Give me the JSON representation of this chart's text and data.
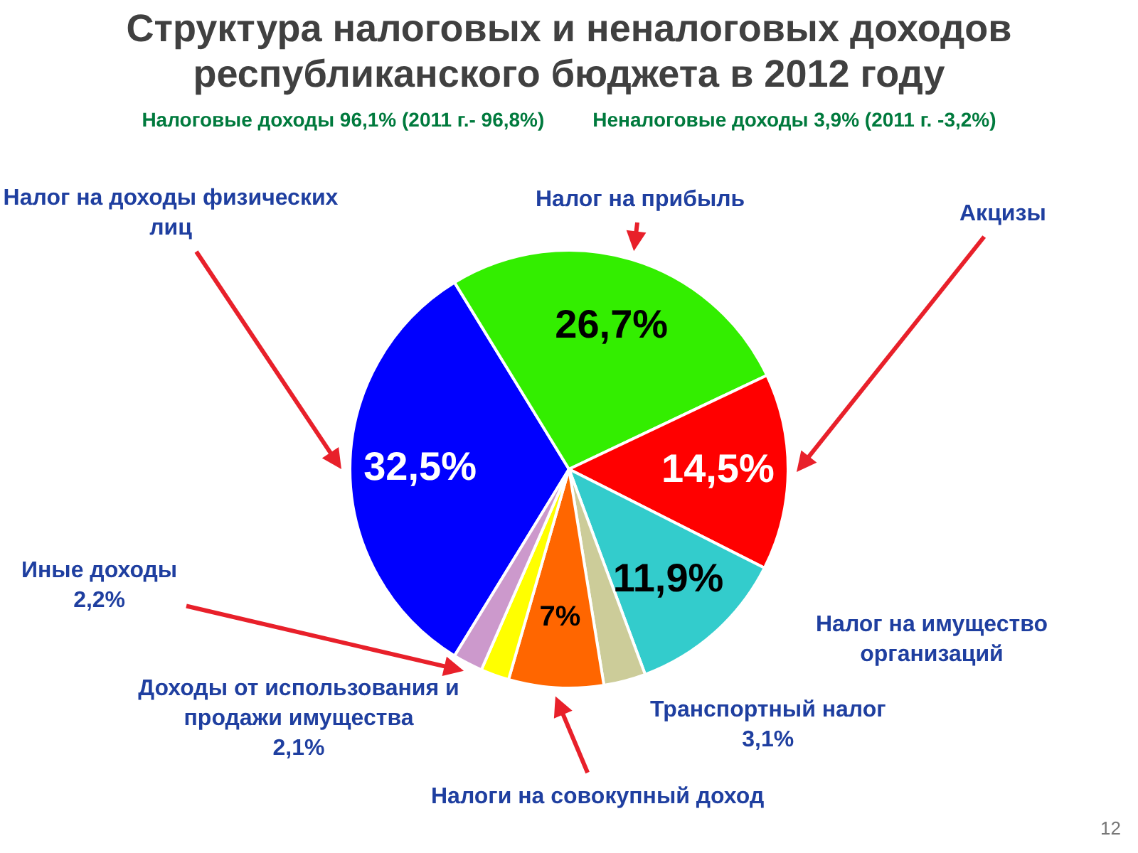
{
  "chart_data": {
    "type": "pie",
    "title": "Структура налоговых и неналоговых доходов республиканского бюджета в 2012 году",
    "annotations": [
      "Налоговые доходы  96,1% (2011 г.- 96,8%)",
      "Неналоговые доходы 3,9% (2011 г. -3,2%)",
      "12"
    ],
    "categories": [
      "Налог на доходы физических лиц",
      "Налог на прибыль",
      "Акцизы",
      "Налог на имущество организаций",
      "Транспортный налог",
      "Налоги на совокупный доход",
      "Доходы от использования и продажи имущества",
      "Иные доходы"
    ],
    "values": [
      32.5,
      26.7,
      14.5,
      11.9,
      3.1,
      7,
      2.1,
      2.2
    ],
    "colors": [
      "#0000ff",
      "#33ee00",
      "#ff0000",
      "#33cccc",
      "#cccc99",
      "#ff6600",
      "#ffff00",
      "#cc99cc"
    ],
    "value_labels": [
      "32,5%",
      "26,7%",
      "14,5%",
      "11,9%",
      "3,1%",
      "7%",
      "2,1%",
      "2,2%"
    ],
    "legend": false
  }
}
